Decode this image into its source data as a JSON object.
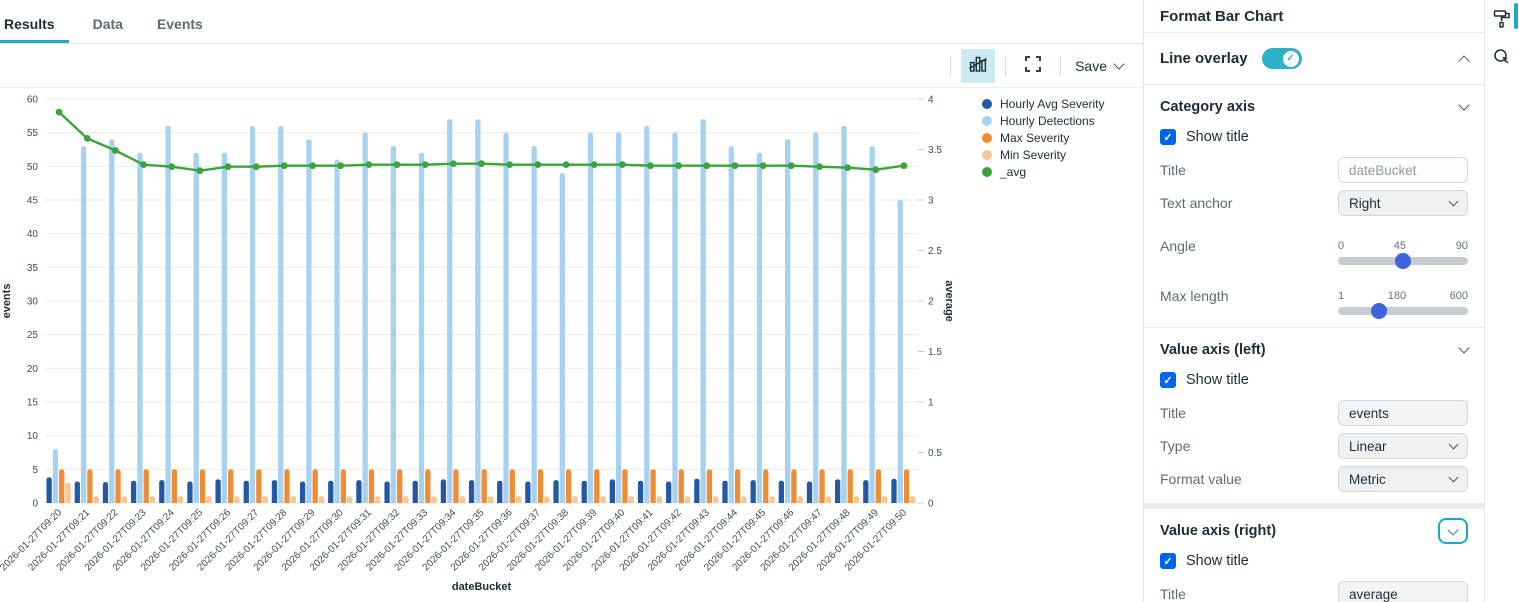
{
  "tabs": [
    {
      "label": "Results",
      "active": true
    },
    {
      "label": "Data",
      "active": false
    },
    {
      "label": "Events",
      "active": false
    }
  ],
  "toolbar": {
    "save_label": "Save"
  },
  "chart_data": {
    "type": "bar",
    "xlabel": "dateBucket",
    "ylabel_left": "events",
    "ylabel_right": "average",
    "y_left": {
      "min": 0,
      "max": 60,
      "step": 5
    },
    "y_right": {
      "min": 0,
      "max": 4,
      "step": 0.5
    },
    "grid": true,
    "legend_position": "right",
    "categories": [
      "2026-01-27T09:20",
      "2026-01-27T09:21",
      "2026-01-27T09:22",
      "2026-01-27T09:23",
      "2026-01-27T09:24",
      "2026-01-27T09:25",
      "2026-01-27T09:26",
      "2026-01-27T09:27",
      "2026-01-27T09:28",
      "2026-01-27T09:29",
      "2026-01-27T09:30",
      "2026-01-27T09:31",
      "2026-01-27T09:32",
      "2026-01-27T09:33",
      "2026-01-27T09:34",
      "2026-01-27T09:35",
      "2026-01-27T09:36",
      "2026-01-27T09:37",
      "2026-01-27T09:38",
      "2026-01-27T09:39",
      "2026-01-27T09:40",
      "2026-01-27T09:41",
      "2026-01-27T09:42",
      "2026-01-27T09:43",
      "2026-01-27T09:44",
      "2026-01-27T09:45",
      "2026-01-27T09:46",
      "2026-01-27T09:47",
      "2026-01-27T09:48",
      "2026-01-27T09:49",
      "2026-01-27T09:50"
    ],
    "series": [
      {
        "name": "Hourly Avg Severity",
        "type": "bar",
        "axis": "left",
        "color": "#2159a6",
        "values": [
          3.8,
          3.2,
          3.1,
          3.3,
          3.4,
          3.2,
          3.5,
          3.3,
          3.4,
          3.2,
          3.3,
          3.4,
          3.2,
          3.3,
          3.5,
          3.4,
          3.3,
          3.2,
          3.4,
          3.3,
          3.5,
          3.3,
          3.2,
          3.6,
          3.3,
          3.4,
          3.3,
          3.2,
          3.5,
          3.4,
          3.6
        ]
      },
      {
        "name": "Hourly Detections",
        "type": "bar",
        "axis": "left",
        "color": "#a6d2f0",
        "values": [
          8,
          53,
          54,
          52,
          56,
          52,
          52,
          56,
          56,
          54,
          51,
          55,
          53,
          52,
          57,
          57,
          55,
          53,
          49,
          55,
          55,
          56,
          55,
          57,
          53,
          52,
          54,
          55,
          56,
          53,
          45
        ]
      },
      {
        "name": "Max Severity",
        "type": "bar",
        "axis": "left",
        "color": "#f08c33",
        "values": [
          5,
          5,
          5,
          5,
          5,
          5,
          5,
          5,
          5,
          5,
          5,
          5,
          5,
          5,
          5,
          5,
          5,
          5,
          5,
          5,
          5,
          5,
          5,
          5,
          5,
          5,
          5,
          5,
          5,
          5,
          5
        ]
      },
      {
        "name": "Min Severity",
        "type": "bar",
        "axis": "left",
        "color": "#f9c595",
        "values": [
          3,
          1,
          1,
          1,
          1,
          1,
          1,
          1,
          1,
          1,
          1,
          1,
          1,
          1,
          1,
          1,
          1,
          1,
          1,
          1,
          1,
          1,
          1,
          1,
          1,
          1,
          1,
          1,
          1,
          1,
          1
        ]
      },
      {
        "name": "_avg",
        "type": "line",
        "axis": "right",
        "color": "#3ba33b",
        "values": [
          3.87,
          3.61,
          3.49,
          3.35,
          3.33,
          3.29,
          3.33,
          3.33,
          3.34,
          3.34,
          3.34,
          3.35,
          3.35,
          3.35,
          3.36,
          3.36,
          3.35,
          3.35,
          3.35,
          3.35,
          3.35,
          3.34,
          3.34,
          3.34,
          3.34,
          3.34,
          3.34,
          3.33,
          3.32,
          3.3,
          3.34
        ]
      }
    ]
  },
  "panel": {
    "title": "Format Bar Chart",
    "line_overlay": {
      "label": "Line overlay",
      "enabled": true
    },
    "category_axis": {
      "header": "Category axis",
      "show_title_label": "Show title",
      "show_title": true,
      "title_label": "Title",
      "title_placeholder": "dateBucket",
      "text_anchor_label": "Text anchor",
      "text_anchor_value": "Right",
      "angle_label": "Angle",
      "angle": {
        "min": "0",
        "mid": "45",
        "max": "90",
        "value": 45
      },
      "max_length_label": "Max length",
      "max_length": {
        "min": "1",
        "mid": "180",
        "max": "600",
        "value": 115
      }
    },
    "value_axis_left": {
      "header": "Value axis (left)",
      "show_title_label": "Show title",
      "show_title": true,
      "title_label": "Title",
      "title_value": "events",
      "type_label": "Type",
      "type_value": "Linear",
      "format_label": "Format value",
      "format_value": "Metric"
    },
    "value_axis_right": {
      "header": "Value axis (right)",
      "show_title_label": "Show title",
      "show_title": true,
      "title_label": "Title",
      "title_value": "average"
    }
  },
  "rail": {
    "icons": [
      {
        "name": "paint-roller-icon",
        "active": true
      },
      {
        "name": "interactive-filter-icon",
        "active": false
      }
    ]
  },
  "colors": {
    "accent": "#1fa9c5",
    "checkbox": "#0167e8",
    "slider_handle": "#3e63dd"
  }
}
